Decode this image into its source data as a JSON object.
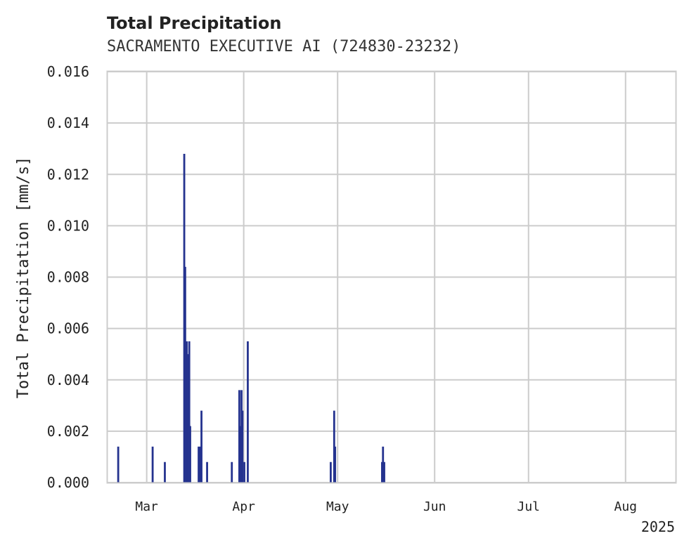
{
  "chart_data": {
    "type": "bar",
    "title": "Total Precipitation",
    "subtitle": "SACRAMENTO EXECUTIVE AI (724830-23232)",
    "xlabel": "",
    "ylabel": "Total Precipitation [mm/s]",
    "year_label": "2025",
    "ylim": [
      0,
      0.016
    ],
    "y_ticks": [
      "0.000",
      "0.002",
      "0.004",
      "0.006",
      "0.008",
      "0.010",
      "0.012",
      "0.014",
      "0.016"
    ],
    "x_ticks": [
      "Mar",
      "Apr",
      "May",
      "Jun",
      "Jul",
      "Aug"
    ],
    "x_tick_days": [
      28,
      59,
      89,
      120,
      150,
      181
    ],
    "xlim_days": [
      15.5,
      197
    ],
    "grid": true,
    "bar_color": "#25338f",
    "series": [
      {
        "name": "Total Precipitation",
        "points": [
          {
            "day": 18.9,
            "value": 0.0014
          },
          {
            "day": 29.9,
            "value": 0.0014
          },
          {
            "day": 33.8,
            "value": 0.0008
          },
          {
            "day": 40.0,
            "value": 0.0128
          },
          {
            "day": 40.3,
            "value": 0.0084
          },
          {
            "day": 40.5,
            "value": 0.0028
          },
          {
            "day": 40.8,
            "value": 0.0055
          },
          {
            "day": 41.1,
            "value": 0.005
          },
          {
            "day": 41.3,
            "value": 0.0028
          },
          {
            "day": 41.6,
            "value": 0.0055
          },
          {
            "day": 41.9,
            "value": 0.0022
          },
          {
            "day": 44.6,
            "value": 0.0014
          },
          {
            "day": 45.1,
            "value": 0.0014
          },
          {
            "day": 45.5,
            "value": 0.0028
          },
          {
            "day": 47.3,
            "value": 0.0008
          },
          {
            "day": 55.2,
            "value": 0.0008
          },
          {
            "day": 57.6,
            "value": 0.0036
          },
          {
            "day": 57.9,
            "value": 0.0022
          },
          {
            "day": 58.3,
            "value": 0.0036
          },
          {
            "day": 58.6,
            "value": 0.0028
          },
          {
            "day": 59.2,
            "value": 0.0008
          },
          {
            "day": 60.3,
            "value": 0.0055
          },
          {
            "day": 86.8,
            "value": 0.0008
          },
          {
            "day": 87.9,
            "value": 0.0028
          },
          {
            "day": 88.2,
            "value": 0.0014
          },
          {
            "day": 103.2,
            "value": 0.0008
          },
          {
            "day": 103.5,
            "value": 0.0014
          },
          {
            "day": 103.9,
            "value": 0.0008
          }
        ]
      }
    ]
  }
}
